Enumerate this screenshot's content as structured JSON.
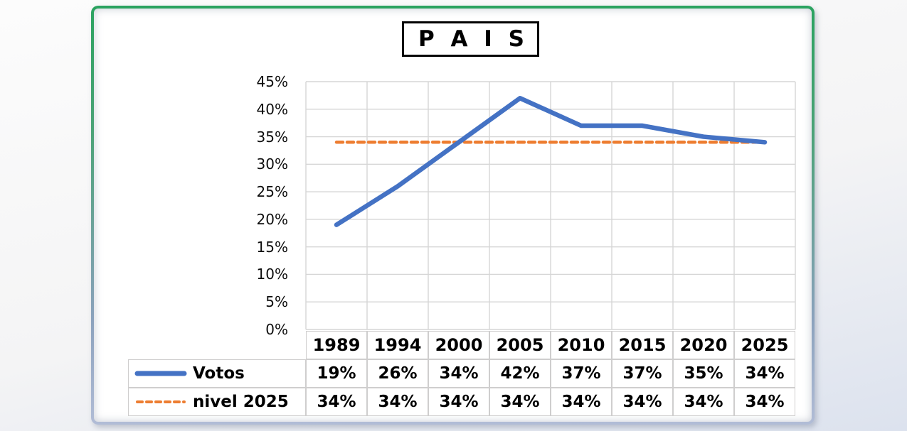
{
  "title": "P A I S",
  "chart_data": {
    "type": "line",
    "title": "P A I S",
    "categories": [
      "1989",
      "1994",
      "2000",
      "2005",
      "2010",
      "2015",
      "2020",
      "2025"
    ],
    "series": [
      {
        "name": "Votos",
        "style": "solid",
        "color": "#4472C4",
        "values": [
          19,
          26,
          34,
          42,
          37,
          37,
          35,
          34
        ]
      },
      {
        "name": "nivel 2025",
        "style": "dashed",
        "color": "#ED7D31",
        "values": [
          34,
          34,
          34,
          34,
          34,
          34,
          34,
          34
        ]
      }
    ],
    "xlabel": "",
    "ylabel": "",
    "ylim": [
      0,
      45
    ],
    "ytick_step": 5,
    "ytick_labels": [
      "45%",
      "40%",
      "35%",
      "30%",
      "25%",
      "20%",
      "15%",
      "10%",
      "5%",
      "0%"
    ],
    "grid": true,
    "legend_position": "table-left"
  },
  "table": {
    "header": [
      "1989",
      "1994",
      "2000",
      "2005",
      "2010",
      "2015",
      "2020",
      "2025"
    ],
    "rows": [
      {
        "label": "Votos",
        "values": [
          "19%",
          "26%",
          "34%",
          "42%",
          "37%",
          "37%",
          "35%",
          "34%"
        ]
      },
      {
        "label": "nivel 2025",
        "values": [
          "34%",
          "34%",
          "34%",
          "34%",
          "34%",
          "34%",
          "34%",
          "34%"
        ]
      }
    ]
  },
  "colors": {
    "votos_line": "#4472C4",
    "nivel_line": "#ED7D31",
    "gridline": "#D6D6D6",
    "table_border": "#CFCECE",
    "frame_border_top": "#2BA360",
    "frame_border_bottom": "#B1BCD6",
    "chart_background": "#FFFFFF"
  }
}
